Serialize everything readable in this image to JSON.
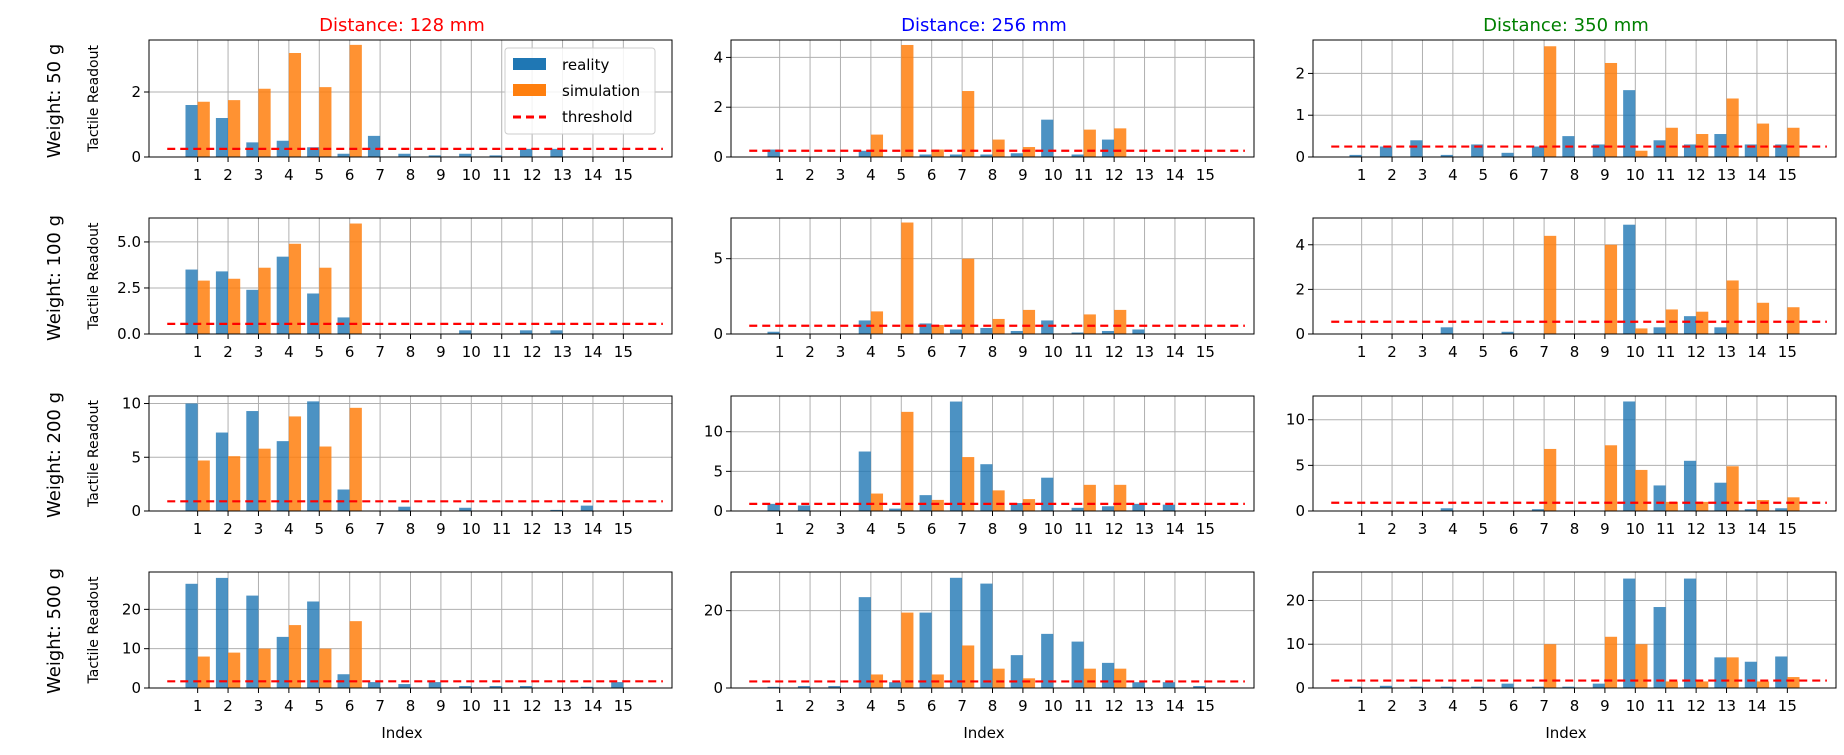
{
  "figure": {
    "xlabel": "Index",
    "ylabel": "Tactile Readout",
    "column_titles": [
      "Distance: 128 mm",
      "Distance: 256 mm",
      "Distance: 350 mm"
    ],
    "row_labels": [
      "Weight: 50 g",
      "Weight: 100 g",
      "Weight: 200 g",
      "Weight: 500 g"
    ],
    "legend": {
      "placement": "top-right of first panel",
      "entries": [
        "reality",
        "simulation",
        "threshold"
      ]
    }
  },
  "colors": {
    "reality": "#1f77b4",
    "simulation": "#ff7f0e",
    "threshold": "#ff0000",
    "col_titles": [
      "#ff0000",
      "#0000ff",
      "#008000"
    ],
    "grid": "#b0b0b0"
  },
  "chart_data": [
    {
      "type": "bar",
      "panel": "r1c1",
      "title": "Distance: 128 mm",
      "row_label": "Weight: 50 g",
      "categories": [
        "1",
        "2",
        "3",
        "4",
        "5",
        "6",
        "7",
        "8",
        "9",
        "10",
        "11",
        "12",
        "13",
        "14",
        "15"
      ],
      "ylim": [
        0,
        3.6
      ],
      "yticks": [
        0,
        2
      ],
      "ytick_labels": [
        "0",
        "2"
      ],
      "threshold": 0.25,
      "series": [
        {
          "name": "reality",
          "values": [
            1.6,
            1.2,
            0.45,
            0.5,
            0.3,
            0.1,
            0.65,
            0.1,
            0.05,
            0.1,
            0.05,
            0.25,
            0.25,
            0,
            0
          ]
        },
        {
          "name": "simulation",
          "values": [
            1.7,
            1.75,
            2.1,
            3.2,
            2.15,
            3.45,
            0,
            0,
            0,
            0,
            0,
            0,
            0,
            0,
            0
          ]
        }
      ]
    },
    {
      "type": "bar",
      "panel": "r1c2",
      "title": "Distance: 256 mm",
      "row_label": "",
      "categories": [
        "1",
        "2",
        "3",
        "4",
        "5",
        "6",
        "7",
        "8",
        "9",
        "10",
        "11",
        "12",
        "13",
        "14",
        "15"
      ],
      "ylim": [
        0,
        4.7
      ],
      "yticks": [
        0,
        2,
        4
      ],
      "ytick_labels": [
        "0",
        "2",
        "4"
      ],
      "threshold": 0.25,
      "series": [
        {
          "name": "reality",
          "values": [
            0.3,
            0,
            0,
            0.25,
            0,
            0.1,
            0.1,
            0.1,
            0.15,
            1.5,
            0.1,
            0.7,
            0,
            0,
            0
          ]
        },
        {
          "name": "simulation",
          "values": [
            0,
            0,
            0,
            0.9,
            4.5,
            0.3,
            2.65,
            0.7,
            0.4,
            0,
            1.1,
            1.15,
            0,
            0,
            0
          ]
        }
      ]
    },
    {
      "type": "bar",
      "panel": "r1c3",
      "title": "Distance: 350 mm",
      "row_label": "",
      "categories": [
        "1",
        "2",
        "3",
        "4",
        "5",
        "6",
        "7",
        "8",
        "9",
        "10",
        "11",
        "12",
        "13",
        "14",
        "15"
      ],
      "ylim": [
        0,
        2.8
      ],
      "yticks": [
        0,
        1,
        2
      ],
      "ytick_labels": [
        "0",
        "1",
        "2"
      ],
      "threshold": 0.25,
      "series": [
        {
          "name": "reality",
          "values": [
            0.05,
            0.25,
            0.4,
            0.05,
            0.3,
            0.1,
            0.25,
            0.5,
            0.3,
            1.6,
            0.4,
            0.3,
            0.55,
            0.3,
            0.3
          ]
        },
        {
          "name": "simulation",
          "values": [
            0,
            0,
            0,
            0,
            0,
            0,
            2.65,
            0,
            2.25,
            0.15,
            0.7,
            0.55,
            1.4,
            0.8,
            0.7
          ]
        }
      ]
    },
    {
      "type": "bar",
      "panel": "r2c1",
      "title": "",
      "row_label": "Weight: 100 g",
      "categories": [
        "1",
        "2",
        "3",
        "4",
        "5",
        "6",
        "7",
        "8",
        "9",
        "10",
        "11",
        "12",
        "13",
        "14",
        "15"
      ],
      "ylim": [
        0,
        6.3
      ],
      "yticks": [
        0,
        2.5,
        5
      ],
      "ytick_labels": [
        "0.0",
        "2.5",
        "5.0"
      ],
      "threshold": 0.55,
      "series": [
        {
          "name": "reality",
          "values": [
            3.5,
            3.4,
            2.4,
            4.2,
            2.2,
            0.9,
            0,
            0,
            0,
            0.2,
            0,
            0.2,
            0.2,
            0,
            0
          ]
        },
        {
          "name": "simulation",
          "values": [
            2.9,
            3.0,
            3.6,
            4.9,
            3.6,
            6.0,
            0,
            0,
            0,
            0,
            0,
            0,
            0,
            0,
            0
          ]
        }
      ]
    },
    {
      "type": "bar",
      "panel": "r2c2",
      "title": "",
      "row_label": "",
      "categories": [
        "1",
        "2",
        "3",
        "4",
        "5",
        "6",
        "7",
        "8",
        "9",
        "10",
        "11",
        "12",
        "13",
        "14",
        "15"
      ],
      "ylim": [
        0,
        7.7
      ],
      "yticks": [
        0,
        5
      ],
      "ytick_labels": [
        "0",
        "5"
      ],
      "threshold": 0.55,
      "series": [
        {
          "name": "reality",
          "values": [
            0.15,
            0,
            0,
            0.9,
            0,
            0.7,
            0.3,
            0.4,
            0.2,
            0.9,
            0.1,
            0.2,
            0.3,
            0,
            0
          ]
        },
        {
          "name": "simulation",
          "values": [
            0,
            0,
            0,
            1.5,
            7.4,
            0.6,
            5.0,
            1.0,
            1.6,
            0,
            1.3,
            1.6,
            0,
            0,
            0
          ]
        }
      ]
    },
    {
      "type": "bar",
      "panel": "r2c3",
      "title": "",
      "row_label": "",
      "categories": [
        "1",
        "2",
        "3",
        "4",
        "5",
        "6",
        "7",
        "8",
        "9",
        "10",
        "11",
        "12",
        "13",
        "14",
        "15"
      ],
      "ylim": [
        0,
        5.2
      ],
      "yticks": [
        0,
        2,
        4
      ],
      "ytick_labels": [
        "0",
        "2",
        "4"
      ],
      "threshold": 0.55,
      "series": [
        {
          "name": "reality",
          "values": [
            0,
            0,
            0,
            0.3,
            0,
            0.1,
            0,
            0,
            0,
            4.9,
            0.3,
            0.8,
            0.3,
            0,
            0
          ]
        },
        {
          "name": "simulation",
          "values": [
            0,
            0,
            0,
            0,
            0,
            0,
            4.4,
            0,
            4.0,
            0.25,
            1.1,
            1.0,
            2.4,
            1.4,
            1.2
          ]
        }
      ]
    },
    {
      "type": "bar",
      "panel": "r3c1",
      "title": "",
      "row_label": "Weight: 200 g",
      "categories": [
        "1",
        "2",
        "3",
        "4",
        "5",
        "6",
        "7",
        "8",
        "9",
        "10",
        "11",
        "12",
        "13",
        "14",
        "15"
      ],
      "ylim": [
        0,
        10.7
      ],
      "yticks": [
        0,
        5,
        10
      ],
      "ytick_labels": [
        "0",
        "5",
        "10"
      ],
      "threshold": 0.9,
      "series": [
        {
          "name": "reality",
          "values": [
            10.0,
            7.3,
            9.3,
            6.5,
            10.2,
            2.0,
            0,
            0.4,
            0,
            0.3,
            0,
            0,
            0.1,
            0.5,
            0
          ]
        },
        {
          "name": "simulation",
          "values": [
            4.7,
            5.1,
            5.8,
            8.8,
            6.0,
            9.6,
            0,
            0,
            0,
            0,
            0,
            0,
            0,
            0,
            0
          ]
        }
      ]
    },
    {
      "type": "bar",
      "panel": "r3c2",
      "title": "",
      "row_label": "",
      "categories": [
        "1",
        "2",
        "3",
        "4",
        "5",
        "6",
        "7",
        "8",
        "9",
        "10",
        "11",
        "12",
        "13",
        "14",
        "15"
      ],
      "ylim": [
        0,
        14.5
      ],
      "yticks": [
        0,
        5,
        10
      ],
      "ytick_labels": [
        "0",
        "5",
        "10"
      ],
      "threshold": 0.9,
      "series": [
        {
          "name": "reality",
          "values": [
            0.9,
            0.7,
            0,
            7.5,
            0.3,
            2.0,
            13.8,
            5.9,
            1.0,
            4.2,
            0.4,
            0.6,
            0.9,
            0.8,
            0
          ]
        },
        {
          "name": "simulation",
          "values": [
            0,
            0,
            0,
            2.2,
            12.5,
            1.4,
            6.8,
            2.6,
            1.5,
            0,
            3.3,
            3.3,
            0,
            0,
            0
          ]
        }
      ]
    },
    {
      "type": "bar",
      "panel": "r3c3",
      "title": "",
      "row_label": "",
      "categories": [
        "1",
        "2",
        "3",
        "4",
        "5",
        "6",
        "7",
        "8",
        "9",
        "10",
        "11",
        "12",
        "13",
        "14",
        "15"
      ],
      "ylim": [
        0,
        12.6
      ],
      "yticks": [
        0,
        5,
        10
      ],
      "ytick_labels": [
        "0",
        "5",
        "10"
      ],
      "threshold": 0.9,
      "series": [
        {
          "name": "reality",
          "values": [
            0,
            0,
            0,
            0.3,
            0,
            0,
            0.2,
            0,
            0,
            12.0,
            2.8,
            5.5,
            3.1,
            0.2,
            0.3
          ]
        },
        {
          "name": "simulation",
          "values": [
            0,
            0,
            0,
            0,
            0,
            0,
            6.8,
            0,
            7.2,
            4.5,
            1.0,
            1.0,
            4.9,
            1.2,
            1.5
          ]
        }
      ]
    },
    {
      "type": "bar",
      "panel": "r4c1",
      "title": "",
      "row_label": "Weight: 500 g",
      "categories": [
        "1",
        "2",
        "3",
        "4",
        "5",
        "6",
        "7",
        "8",
        "9",
        "10",
        "11",
        "12",
        "13",
        "14",
        "15"
      ],
      "ylim": [
        0,
        29.5
      ],
      "yticks": [
        0,
        10,
        20
      ],
      "ytick_labels": [
        "0",
        "10",
        "20"
      ],
      "threshold": 1.7,
      "series": [
        {
          "name": "reality",
          "values": [
            26.5,
            28.0,
            23.5,
            13.0,
            22.0,
            3.5,
            1.5,
            1.0,
            1.5,
            0.5,
            0.5,
            0.5,
            0,
            0.3,
            1.5
          ]
        },
        {
          "name": "simulation",
          "values": [
            8.0,
            9.0,
            10.0,
            16.0,
            10.0,
            17.0,
            0,
            0,
            0,
            0,
            0,
            0,
            0,
            0,
            0
          ]
        }
      ]
    },
    {
      "type": "bar",
      "panel": "r4c2",
      "title": "",
      "row_label": "",
      "categories": [
        "1",
        "2",
        "3",
        "4",
        "5",
        "6",
        "7",
        "8",
        "9",
        "10",
        "11",
        "12",
        "13",
        "14",
        "15"
      ],
      "ylim": [
        0,
        30
      ],
      "yticks": [
        0,
        20
      ],
      "ytick_labels": [
        "0",
        "20"
      ],
      "threshold": 1.7,
      "series": [
        {
          "name": "reality",
          "values": [
            0.3,
            0.5,
            0.5,
            23.5,
            1.5,
            19.5,
            28.5,
            27.0,
            8.5,
            14.0,
            12.0,
            6.5,
            1.5,
            1.5,
            0.5
          ]
        },
        {
          "name": "simulation",
          "values": [
            0,
            0,
            0,
            3.5,
            19.5,
            3.5,
            11.0,
            5.0,
            2.5,
            0,
            5.0,
            5.0,
            0,
            0,
            0
          ]
        }
      ]
    },
    {
      "type": "bar",
      "panel": "r4c3",
      "title": "",
      "row_label": "",
      "categories": [
        "1",
        "2",
        "3",
        "4",
        "5",
        "6",
        "7",
        "8",
        "9",
        "10",
        "11",
        "12",
        "13",
        "14",
        "15"
      ],
      "ylim": [
        0,
        26.5
      ],
      "yticks": [
        0,
        10,
        20
      ],
      "ytick_labels": [
        "0",
        "10",
        "20"
      ],
      "threshold": 1.7,
      "series": [
        {
          "name": "reality",
          "values": [
            0.3,
            0.5,
            0.3,
            0.3,
            0.3,
            1.0,
            0.3,
            0.3,
            1.0,
            25.0,
            18.5,
            25.0,
            7.0,
            6.0,
            7.2
          ]
        },
        {
          "name": "simulation",
          "values": [
            0,
            0,
            0,
            0,
            0,
            0,
            10.0,
            0,
            11.7,
            10.0,
            1.5,
            1.5,
            7.0,
            1.5,
            2.5
          ]
        }
      ]
    }
  ]
}
